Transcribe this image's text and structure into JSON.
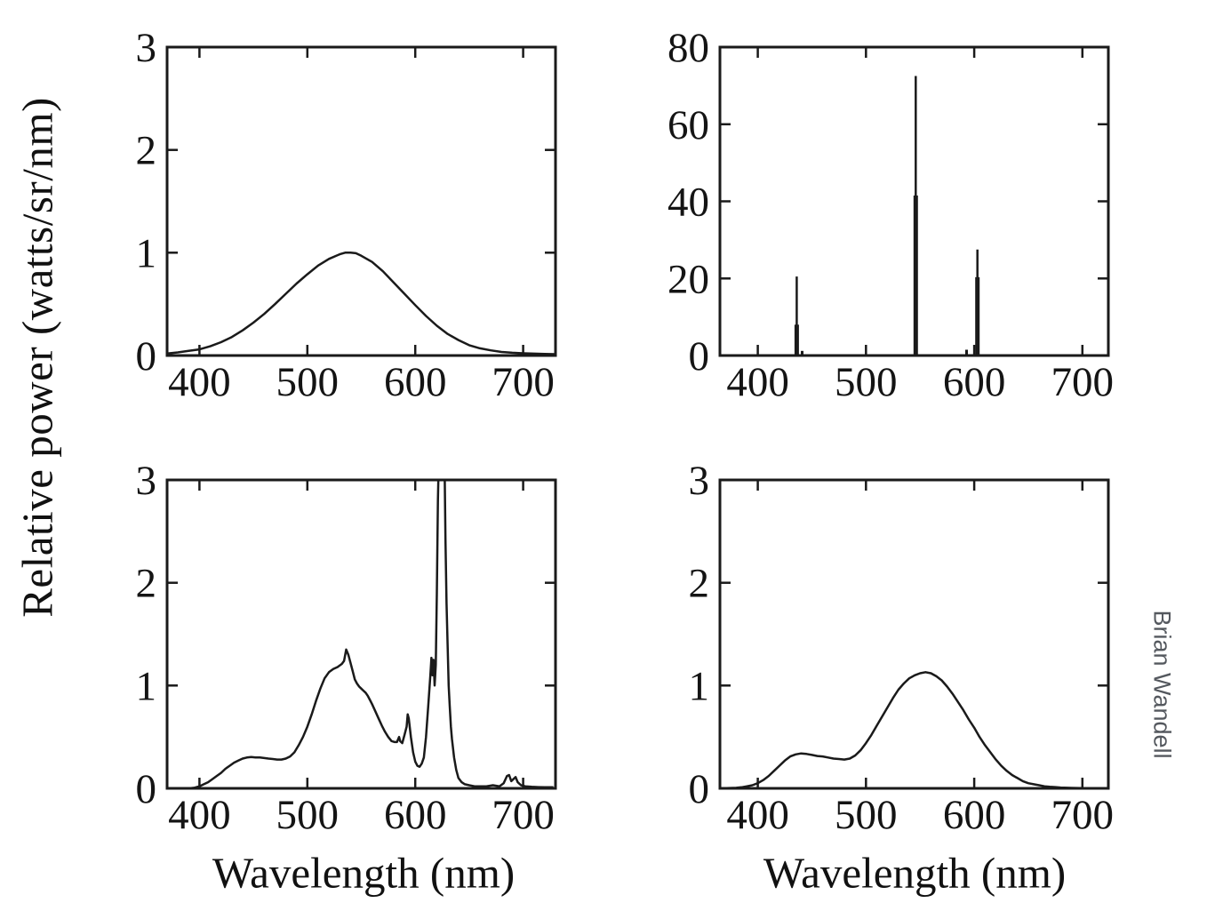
{
  "figure": {
    "y_axis_label": "Relative power (watts/sr/nm)",
    "x_axis_label_left": "Wavelength (nm)",
    "x_axis_label_right": "Wavelength (nm)",
    "credit": "Brian Wandell",
    "colors": {
      "background": "#ffffff",
      "line": "#1a1a1a",
      "tick_text": "#141414",
      "credit_text": "#54585e"
    }
  },
  "chart_data": [
    {
      "id": "broadband-smooth-spectrum",
      "position": "top-left",
      "type": "line",
      "title": "",
      "xlabel": "",
      "ylabel": "Relative power (watts/sr/nm)",
      "xlim": [
        370,
        730
      ],
      "ylim": [
        0,
        3
      ],
      "xticks": [
        400,
        500,
        600,
        700
      ],
      "yticks": [
        0,
        1,
        2,
        3
      ],
      "grid": false,
      "points": [
        [
          370,
          0.02
        ],
        [
          380,
          0.03
        ],
        [
          390,
          0.045
        ],
        [
          400,
          0.06
        ],
        [
          410,
          0.09
        ],
        [
          420,
          0.13
        ],
        [
          430,
          0.18
        ],
        [
          440,
          0.245
        ],
        [
          450,
          0.32
        ],
        [
          460,
          0.405
        ],
        [
          470,
          0.5
        ],
        [
          480,
          0.6
        ],
        [
          490,
          0.7
        ],
        [
          500,
          0.79
        ],
        [
          510,
          0.875
        ],
        [
          520,
          0.94
        ],
        [
          530,
          0.985
        ],
        [
          535,
          1.0
        ],
        [
          540,
          1.0
        ],
        [
          545,
          0.995
        ],
        [
          550,
          0.97
        ],
        [
          560,
          0.91
        ],
        [
          570,
          0.82
        ],
        [
          580,
          0.71
        ],
        [
          590,
          0.6
        ],
        [
          600,
          0.49
        ],
        [
          610,
          0.385
        ],
        [
          620,
          0.29
        ],
        [
          630,
          0.21
        ],
        [
          640,
          0.15
        ],
        [
          650,
          0.1
        ],
        [
          660,
          0.07
        ],
        [
          670,
          0.05
        ],
        [
          680,
          0.035
        ],
        [
          690,
          0.027
        ],
        [
          700,
          0.022
        ],
        [
          710,
          0.018
        ],
        [
          720,
          0.015
        ],
        [
          730,
          0.013
        ]
      ]
    },
    {
      "id": "discrete-line-spectrum",
      "position": "top-right",
      "type": "spectral-lines",
      "title": "",
      "xlabel": "",
      "ylabel": "",
      "xlim": [
        365,
        724
      ],
      "ylim": [
        0,
        80
      ],
      "xticks": [
        400,
        500,
        600,
        700
      ],
      "yticks": [
        0,
        20,
        40,
        60,
        80
      ],
      "grid": false,
      "spikes": [
        {
          "nm": 436,
          "base": 8,
          "peak": 20.5
        },
        {
          "nm": 546,
          "base": 41.5,
          "peak": 72.5
        },
        {
          "nm": 603,
          "base": 20.3,
          "peak": 27.5
        }
      ],
      "minor_spikes": [
        {
          "nm": 441,
          "peak": 1.2
        },
        {
          "nm": 593,
          "peak": 1.5
        }
      ]
    },
    {
      "id": "fluorescent-complex-spectrum",
      "position": "bottom-left",
      "type": "line",
      "title": "",
      "xlabel": "Wavelength (nm)",
      "ylabel": "Relative power (watts/sr/nm)",
      "xlim": [
        370,
        730
      ],
      "ylim": [
        0,
        3
      ],
      "xticks": [
        400,
        500,
        600,
        700
      ],
      "yticks": [
        0,
        1,
        2,
        3
      ],
      "grid": false,
      "clip_note": "main red emission spike exceeds y-axis maximum and is clipped at 3",
      "points": [
        [
          370,
          0.0
        ],
        [
          390,
          0.0
        ],
        [
          395,
          0.005
        ],
        [
          400,
          0.02
        ],
        [
          404,
          0.04
        ],
        [
          408,
          0.06
        ],
        [
          412,
          0.09
        ],
        [
          416,
          0.12
        ],
        [
          420,
          0.15
        ],
        [
          424,
          0.19
        ],
        [
          428,
          0.22
        ],
        [
          432,
          0.25
        ],
        [
          436,
          0.27
        ],
        [
          440,
          0.29
        ],
        [
          444,
          0.3
        ],
        [
          448,
          0.305
        ],
        [
          452,
          0.3
        ],
        [
          456,
          0.3
        ],
        [
          460,
          0.295
        ],
        [
          464,
          0.29
        ],
        [
          468,
          0.285
        ],
        [
          472,
          0.28
        ],
        [
          476,
          0.28
        ],
        [
          480,
          0.29
        ],
        [
          484,
          0.31
        ],
        [
          488,
          0.35
        ],
        [
          492,
          0.42
        ],
        [
          496,
          0.5
        ],
        [
          500,
          0.6
        ],
        [
          504,
          0.72
        ],
        [
          508,
          0.85
        ],
        [
          512,
          0.97
        ],
        [
          516,
          1.07
        ],
        [
          520,
          1.13
        ],
        [
          524,
          1.16
        ],
        [
          528,
          1.18
        ],
        [
          532,
          1.21
        ],
        [
          534,
          1.24
        ],
        [
          536,
          1.35
        ],
        [
          538,
          1.3
        ],
        [
          540,
          1.22
        ],
        [
          542,
          1.14
        ],
        [
          544,
          1.06
        ],
        [
          546,
          1.02
        ],
        [
          548,
          0.99
        ],
        [
          550,
          0.97
        ],
        [
          552,
          0.95
        ],
        [
          554,
          0.93
        ],
        [
          556,
          0.9
        ],
        [
          558,
          0.86
        ],
        [
          560,
          0.82
        ],
        [
          563,
          0.75
        ],
        [
          566,
          0.68
        ],
        [
          569,
          0.61
        ],
        [
          572,
          0.55
        ],
        [
          575,
          0.5
        ],
        [
          578,
          0.46
        ],
        [
          581,
          0.45
        ],
        [
          583,
          0.45
        ],
        [
          585,
          0.5
        ],
        [
          586,
          0.46
        ],
        [
          588,
          0.44
        ],
        [
          590,
          0.52
        ],
        [
          592,
          0.6
        ],
        [
          593,
          0.72
        ],
        [
          594,
          0.68
        ],
        [
          596,
          0.5
        ],
        [
          598,
          0.35
        ],
        [
          600,
          0.26
        ],
        [
          602,
          0.22
        ],
        [
          604,
          0.21
        ],
        [
          606,
          0.24
        ],
        [
          608,
          0.3
        ],
        [
          610,
          0.5
        ],
        [
          612,
          0.8
        ],
        [
          614,
          1.1
        ],
        [
          615,
          1.27
        ],
        [
          616,
          1.1
        ],
        [
          617,
          1.25
        ],
        [
          618,
          1.0
        ],
        [
          619,
          1.2
        ],
        [
          620,
          1.9
        ],
        [
          621,
          2.8
        ],
        [
          622,
          3.3
        ],
        [
          623,
          3.6
        ],
        [
          626,
          3.6
        ],
        [
          627,
          3.3
        ],
        [
          628,
          2.42
        ],
        [
          629,
          1.8
        ],
        [
          630,
          1.4
        ],
        [
          631,
          1.0
        ],
        [
          632,
          0.8
        ],
        [
          633,
          0.6
        ],
        [
          634,
          0.48
        ],
        [
          636,
          0.3
        ],
        [
          638,
          0.18
        ],
        [
          640,
          0.1
        ],
        [
          643,
          0.06
        ],
        [
          646,
          0.04
        ],
        [
          650,
          0.03
        ],
        [
          655,
          0.02
        ],
        [
          660,
          0.02
        ],
        [
          666,
          0.02
        ],
        [
          672,
          0.03
        ],
        [
          678,
          0.02
        ],
        [
          682,
          0.05
        ],
        [
          685,
          0.12
        ],
        [
          687,
          0.13
        ],
        [
          689,
          0.07
        ],
        [
          691,
          0.09
        ],
        [
          693,
          0.11
        ],
        [
          695,
          0.06
        ],
        [
          698,
          0.03
        ],
        [
          702,
          0.02
        ],
        [
          708,
          0.015
        ],
        [
          714,
          0.012
        ],
        [
          720,
          0.01
        ],
        [
          728,
          0.01
        ]
      ]
    },
    {
      "id": "double-hump-smooth-spectrum",
      "position": "bottom-right",
      "type": "line",
      "title": "",
      "xlabel": "Wavelength (nm)",
      "ylabel": "",
      "xlim": [
        365,
        724
      ],
      "ylim": [
        0,
        3
      ],
      "xticks": [
        400,
        500,
        600,
        700
      ],
      "yticks": [
        0,
        1,
        2,
        3
      ],
      "grid": false,
      "points": [
        [
          365,
          0.0
        ],
        [
          380,
          0.005
        ],
        [
          385,
          0.01
        ],
        [
          390,
          0.02
        ],
        [
          395,
          0.03
        ],
        [
          400,
          0.05
        ],
        [
          405,
          0.08
        ],
        [
          410,
          0.12
        ],
        [
          415,
          0.17
        ],
        [
          420,
          0.22
        ],
        [
          425,
          0.27
        ],
        [
          430,
          0.31
        ],
        [
          435,
          0.33
        ],
        [
          440,
          0.34
        ],
        [
          445,
          0.335
        ],
        [
          450,
          0.325
        ],
        [
          455,
          0.315
        ],
        [
          460,
          0.31
        ],
        [
          465,
          0.3
        ],
        [
          470,
          0.29
        ],
        [
          475,
          0.285
        ],
        [
          480,
          0.28
        ],
        [
          485,
          0.29
        ],
        [
          490,
          0.32
        ],
        [
          495,
          0.37
        ],
        [
          500,
          0.44
        ],
        [
          505,
          0.52
        ],
        [
          510,
          0.61
        ],
        [
          515,
          0.7
        ],
        [
          520,
          0.79
        ],
        [
          525,
          0.88
        ],
        [
          530,
          0.96
        ],
        [
          535,
          1.02
        ],
        [
          540,
          1.07
        ],
        [
          545,
          1.1
        ],
        [
          550,
          1.12
        ],
        [
          555,
          1.13
        ],
        [
          560,
          1.12
        ],
        [
          565,
          1.09
        ],
        [
          570,
          1.05
        ],
        [
          575,
          0.99
        ],
        [
          580,
          0.92
        ],
        [
          585,
          0.84
        ],
        [
          590,
          0.76
        ],
        [
          595,
          0.67
        ],
        [
          600,
          0.59
        ],
        [
          605,
          0.5
        ],
        [
          610,
          0.42
        ],
        [
          615,
          0.35
        ],
        [
          620,
          0.28
        ],
        [
          625,
          0.22
        ],
        [
          630,
          0.17
        ],
        [
          635,
          0.13
        ],
        [
          640,
          0.1
        ],
        [
          645,
          0.07
        ],
        [
          650,
          0.05
        ],
        [
          655,
          0.04
        ],
        [
          660,
          0.03
        ],
        [
          665,
          0.02
        ],
        [
          670,
          0.015
        ],
        [
          675,
          0.012
        ],
        [
          680,
          0.008
        ],
        [
          690,
          0.004
        ],
        [
          700,
          0.002
        ],
        [
          712,
          0.001
        ],
        [
          724,
          0.0
        ]
      ]
    }
  ]
}
